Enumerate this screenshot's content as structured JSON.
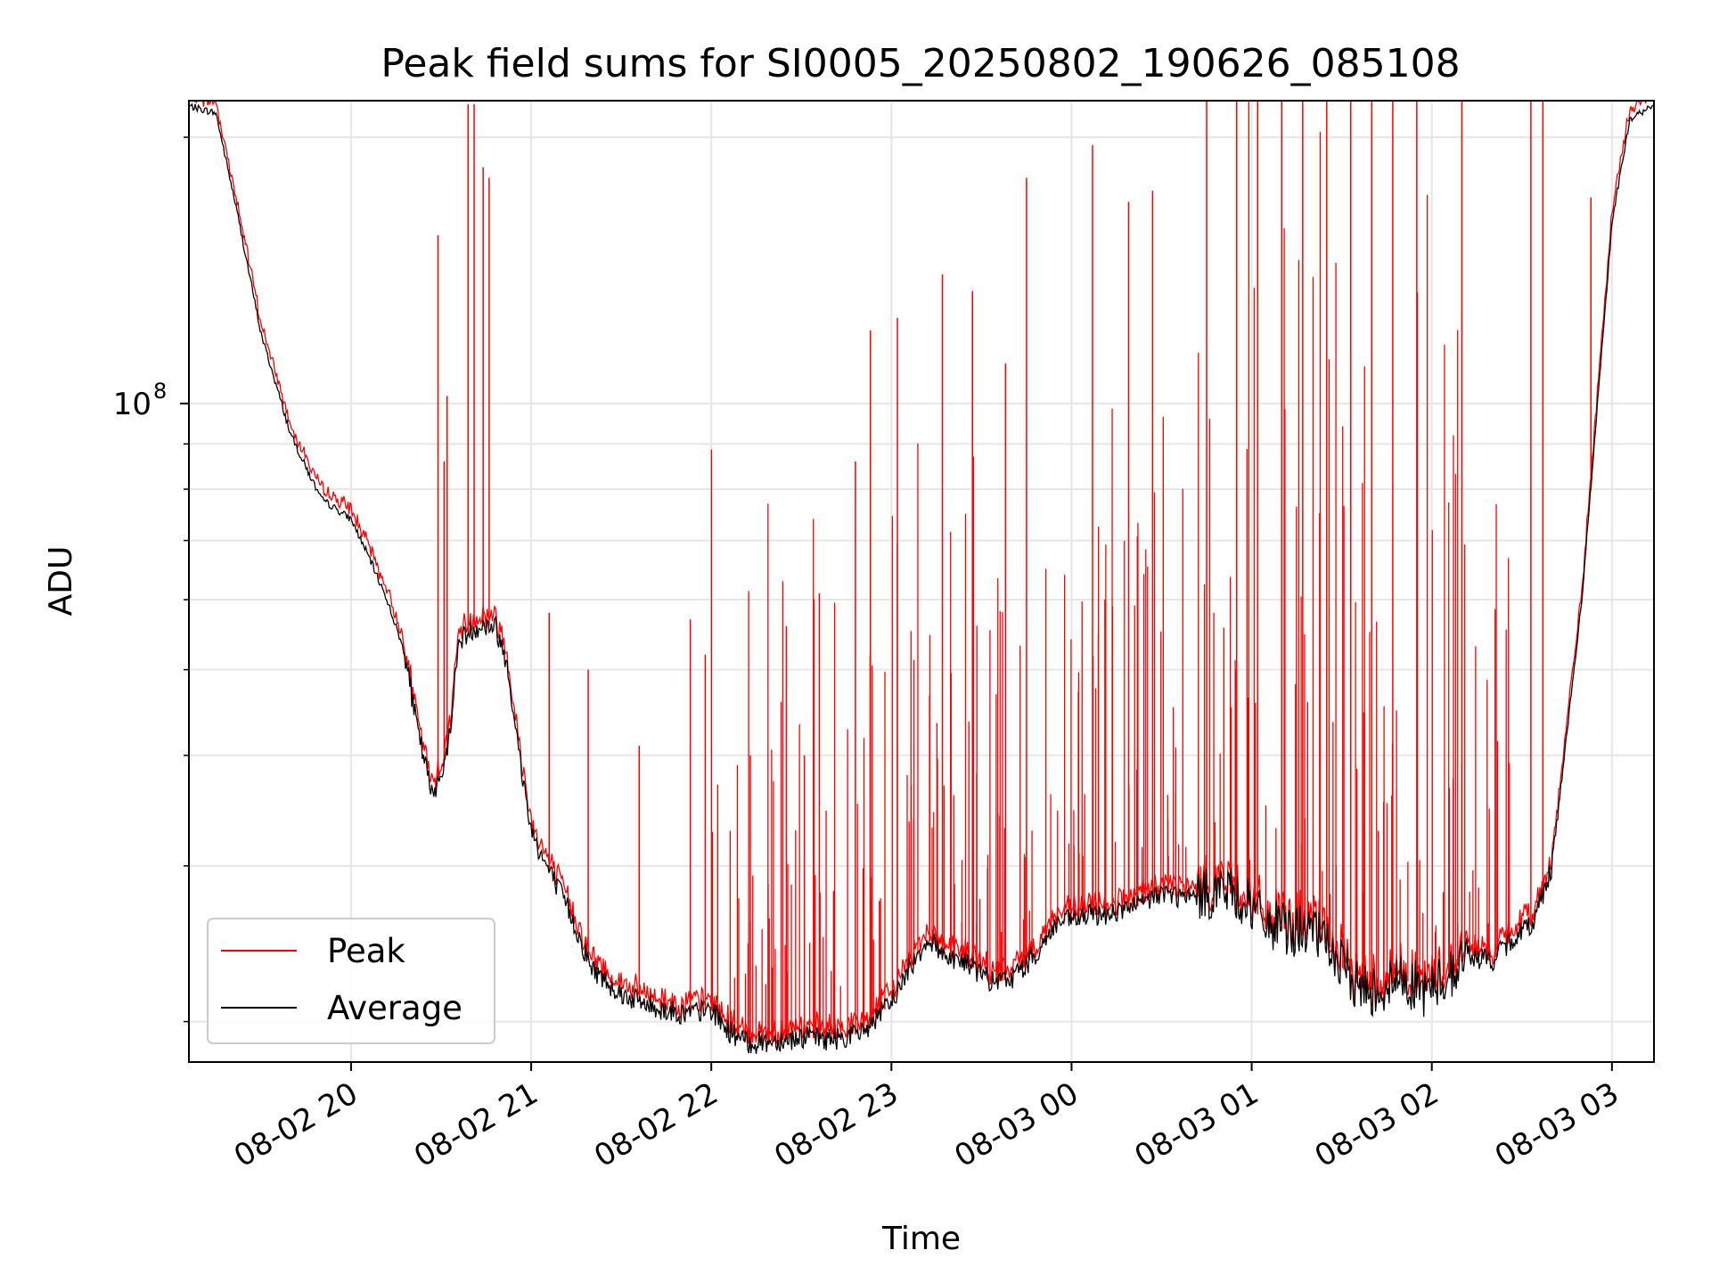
{
  "chart_data": {
    "type": "line",
    "title": "Peak field sums for SI0005_20250802_190626_085108",
    "xlabel": "Time",
    "ylabel": "ADU",
    "y_scale": "log",
    "ylim": [
      18000000,
      220000000
    ],
    "y_ticks": [
      {
        "value": 100000000,
        "label_base": "10",
        "label_exp": "8"
      }
    ],
    "y_minor_ticks": [
      20000000,
      30000000,
      40000000,
      50000000,
      60000000,
      70000000,
      80000000,
      90000000,
      200000000
    ],
    "xlim": [
      "2025-08-02 19:06",
      "2025-08-03 03:14"
    ],
    "x_ticks": [
      {
        "value": "2025-08-02 20:00",
        "label": "08-02 20"
      },
      {
        "value": "2025-08-02 21:00",
        "label": "08-02 21"
      },
      {
        "value": "2025-08-02 22:00",
        "label": "08-02 22"
      },
      {
        "value": "2025-08-02 23:00",
        "label": "08-02 23"
      },
      {
        "value": "2025-08-03 00:00",
        "label": "08-03 00"
      },
      {
        "value": "2025-08-03 01:00",
        "label": "08-03 01"
      },
      {
        "value": "2025-08-03 02:00",
        "label": "08-03 02"
      },
      {
        "value": "2025-08-03 03:00",
        "label": "08-03 03"
      }
    ],
    "grid": true,
    "legend_position": "lower-left",
    "series": [
      {
        "name": "Peak",
        "color": "#ff0000"
      },
      {
        "name": "Average",
        "color": "#000000"
      }
    ],
    "average_profile": {
      "x": [
        "2025-08-02 19:06",
        "2025-08-02 19:15",
        "2025-08-02 19:22",
        "2025-08-02 19:30",
        "2025-08-02 19:40",
        "2025-08-02 19:50",
        "2025-08-02 20:00",
        "2025-08-02 20:06",
        "2025-08-02 20:12",
        "2025-08-02 20:18",
        "2025-08-02 20:22",
        "2025-08-02 20:27",
        "2025-08-02 20:32",
        "2025-08-02 20:36",
        "2025-08-02 20:42",
        "2025-08-02 20:48",
        "2025-08-02 20:52",
        "2025-08-02 20:56",
        "2025-08-02 21:00",
        "2025-08-02 21:04",
        "2025-08-02 21:12",
        "2025-08-02 21:20",
        "2025-08-02 21:30",
        "2025-08-02 21:40",
        "2025-08-02 21:50",
        "2025-08-02 22:00",
        "2025-08-02 22:06",
        "2025-08-02 22:12",
        "2025-08-02 22:20",
        "2025-08-02 22:30",
        "2025-08-02 22:40",
        "2025-08-02 22:50",
        "2025-08-02 23:00",
        "2025-08-02 23:06",
        "2025-08-02 23:12",
        "2025-08-02 23:18",
        "2025-08-02 23:26",
        "2025-08-02 23:34",
        "2025-08-02 23:40",
        "2025-08-02 23:48",
        "2025-08-02 23:55",
        "2025-08-03 00:05",
        "2025-08-03 00:15",
        "2025-08-03 00:22",
        "2025-08-03 00:30",
        "2025-08-03 00:40",
        "2025-08-03 00:50",
        "2025-08-03 00:58",
        "2025-08-03 01:05",
        "2025-08-03 01:12",
        "2025-08-03 01:20",
        "2025-08-03 01:26",
        "2025-08-03 01:32",
        "2025-08-03 01:38",
        "2025-08-03 01:44",
        "2025-08-03 01:50",
        "2025-08-03 01:58",
        "2025-08-03 02:05",
        "2025-08-03 02:12",
        "2025-08-03 02:20",
        "2025-08-03 02:28",
        "2025-08-03 02:34",
        "2025-08-03 02:40",
        "2025-08-03 02:50",
        "2025-08-03 03:00",
        "2025-08-03 03:06",
        "2025-08-03 03:14"
      ],
      "y": [
        217000000,
        213000000,
        165000000,
        120000000,
        92000000,
        78000000,
        74000000,
        67000000,
        60000000,
        52000000,
        43000000,
        36000000,
        40000000,
        54000000,
        56000000,
        56000000,
        51000000,
        40000000,
        33000000,
        30500000,
        27000000,
        23000000,
        21500000,
        20800000,
        20400000,
        20600000,
        19500000,
        18900000,
        19000000,
        19200000,
        19100000,
        19400000,
        21000000,
        23000000,
        24800000,
        23800000,
        23200000,
        22100000,
        22400000,
        23800000,
        25800000,
        26300000,
        26600000,
        27000000,
        28000000,
        27500000,
        28300000,
        27300000,
        25800000,
        25400000,
        25300000,
        24300000,
        22500000,
        21700000,
        21800000,
        22400000,
        21600000,
        22400000,
        23800000,
        23400000,
        25000000,
        26000000,
        30000000,
        60000000,
        160000000,
        210000000,
        217000000
      ]
    },
    "peak_spikes": {
      "x": [
        "2025-08-02 20:29",
        "2025-08-02 20:31",
        "2025-08-02 20:32",
        "2025-08-02 20:39",
        "2025-08-02 20:41",
        "2025-08-02 20:44",
        "2025-08-02 20:46",
        "2025-08-02 21:06",
        "2025-08-02 21:19",
        "2025-08-02 21:36",
        "2025-08-02 21:53",
        "2025-08-02 21:58",
        "2025-08-02 22:13",
        "2025-08-02 22:25",
        "2025-08-02 22:31",
        "2025-08-02 22:36",
        "2025-08-02 22:48",
        "2025-08-02 22:53",
        "2025-08-02 23:02",
        "2025-08-02 23:17",
        "2025-08-02 23:27",
        "2025-08-02 23:38",
        "2025-08-02 23:45",
        "2025-08-03 00:07",
        "2025-08-03 00:19",
        "2025-08-03 00:27",
        "2025-08-03 00:45",
        "2025-08-03 00:55",
        "2025-08-03 01:02",
        "2025-08-03 01:10",
        "2025-08-03 01:17",
        "2025-08-03 01:25",
        "2025-08-03 01:33",
        "2025-08-03 01:40",
        "2025-08-03 01:47",
        "2025-08-03 01:55",
        "2025-08-03 02:10",
        "2025-08-03 02:33",
        "2025-08-03 02:37",
        "2025-08-03 02:53"
      ],
      "y": [
        155000000,
        86000000,
        102000000,
        218000000,
        218000000,
        185000000,
        180000000,
        58000000,
        50000000,
        41000000,
        57000000,
        52000000,
        40000000,
        56000000,
        40000000,
        61000000,
        86000000,
        121000000,
        125000000,
        140000000,
        134000000,
        111000000,
        180000000,
        196000000,
        169000000,
        174000000,
        220000000,
        220000000,
        220000000,
        220000000,
        220000000,
        220000000,
        220000000,
        220000000,
        220000000,
        220000000,
        220000000,
        220000000,
        220000000,
        171000000
      ]
    }
  }
}
